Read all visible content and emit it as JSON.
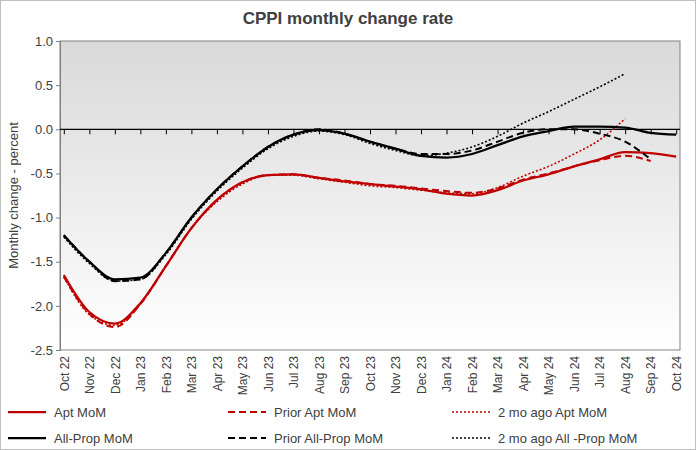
{
  "chart_data": {
    "type": "line",
    "title": "CPPI monthly change rate",
    "y_label": "Monthly change - percent",
    "categories": [
      "Oct 22",
      "Nov 22",
      "Dec 22",
      "Jan 23",
      "Feb 23",
      "Mar 23",
      "Apr 23",
      "May 23",
      "Jun 23",
      "Jul 23",
      "Aug 23",
      "Sep 23",
      "Oct 23",
      "Nov 23",
      "Dec 23",
      "Jan 24",
      "Feb 24",
      "Mar 24",
      "Apr 24",
      "May 24",
      "Jun 24",
      "Jul 24",
      "Aug 24",
      "Sep 24",
      "Oct 24"
    ],
    "ylim": [
      -2.5,
      1.0
    ],
    "yticks": [
      -2.5,
      {
        "value": -2,
        "label": "-2.0"
      },
      -1.5,
      {
        "value": -1,
        "label": "-1.0"
      },
      -0.5,
      {
        "value": 0,
        "label": "0.0"
      },
      0.5,
      {
        "value": 1,
        "label": "1.0"
      }
    ],
    "grid": false,
    "legend": "bottom",
    "series": [
      {
        "name": "Apt MoM",
        "color": "#c00000",
        "line_style": "solid",
        "values": [
          -1.65,
          -2.07,
          -2.2,
          -1.97,
          -1.55,
          -1.12,
          -0.8,
          -0.6,
          -0.52,
          -0.51,
          -0.55,
          -0.59,
          -0.62,
          -0.65,
          -0.68,
          -0.73,
          -0.75,
          -0.69,
          -0.58,
          -0.51,
          -0.42,
          -0.34,
          -0.26,
          -0.27,
          -0.31
        ]
      },
      {
        "name": "Prior Apt MoM",
        "color": "#c00000",
        "line_style": "dashed",
        "values": [
          -1.67,
          -2.09,
          -2.24,
          -1.98,
          -1.55,
          -1.12,
          -0.8,
          -0.6,
          -0.52,
          -0.51,
          -0.55,
          -0.58,
          -0.62,
          -0.64,
          -0.67,
          -0.7,
          -0.72,
          -0.67,
          -0.57,
          -0.5,
          -0.42,
          -0.35,
          -0.3,
          -0.36,
          null
        ]
      },
      {
        "name": "2 mo ago Apt MoM",
        "color": "#c00000",
        "line_style": "dotted",
        "values": [
          -1.67,
          -2.1,
          -2.22,
          -1.98,
          -1.55,
          -1.12,
          -0.82,
          -0.62,
          -0.52,
          -0.52,
          -0.56,
          -0.6,
          -0.64,
          -0.66,
          -0.69,
          -0.72,
          -0.73,
          -0.66,
          -0.53,
          -0.42,
          -0.28,
          -0.12,
          0.12,
          null,
          null
        ]
      },
      {
        "name": "All-Prop MoM",
        "color": "#000000",
        "line_style": "solid",
        "values": [
          -1.2,
          -1.5,
          -1.7,
          -1.68,
          -1.4,
          -1.0,
          -0.68,
          -0.42,
          -0.2,
          -0.06,
          -0.01,
          -0.05,
          -0.14,
          -0.22,
          -0.3,
          -0.32,
          -0.28,
          -0.18,
          -0.08,
          -0.02,
          0.03,
          0.03,
          0.02,
          -0.04,
          -0.06
        ]
      },
      {
        "name": "Prior All-Prop MoM",
        "color": "#000000",
        "line_style": "dashed",
        "values": [
          -1.2,
          -1.5,
          -1.72,
          -1.7,
          -1.4,
          -1.0,
          -0.68,
          -0.42,
          -0.2,
          -0.06,
          0.0,
          -0.05,
          -0.14,
          -0.22,
          -0.28,
          -0.28,
          -0.24,
          -0.14,
          -0.04,
          0.0,
          0.0,
          -0.05,
          -0.14,
          -0.34,
          null
        ]
      },
      {
        "name": "2 mo ago All -Prop MoM",
        "color": "#000000",
        "line_style": "dotted",
        "values": [
          -1.22,
          -1.52,
          -1.72,
          -1.7,
          -1.42,
          -1.02,
          -0.7,
          -0.44,
          -0.22,
          -0.08,
          -0.02,
          -0.06,
          -0.16,
          -0.24,
          -0.3,
          -0.27,
          -0.2,
          -0.08,
          0.07,
          0.2,
          0.34,
          0.48,
          0.63,
          null,
          null
        ]
      }
    ]
  }
}
